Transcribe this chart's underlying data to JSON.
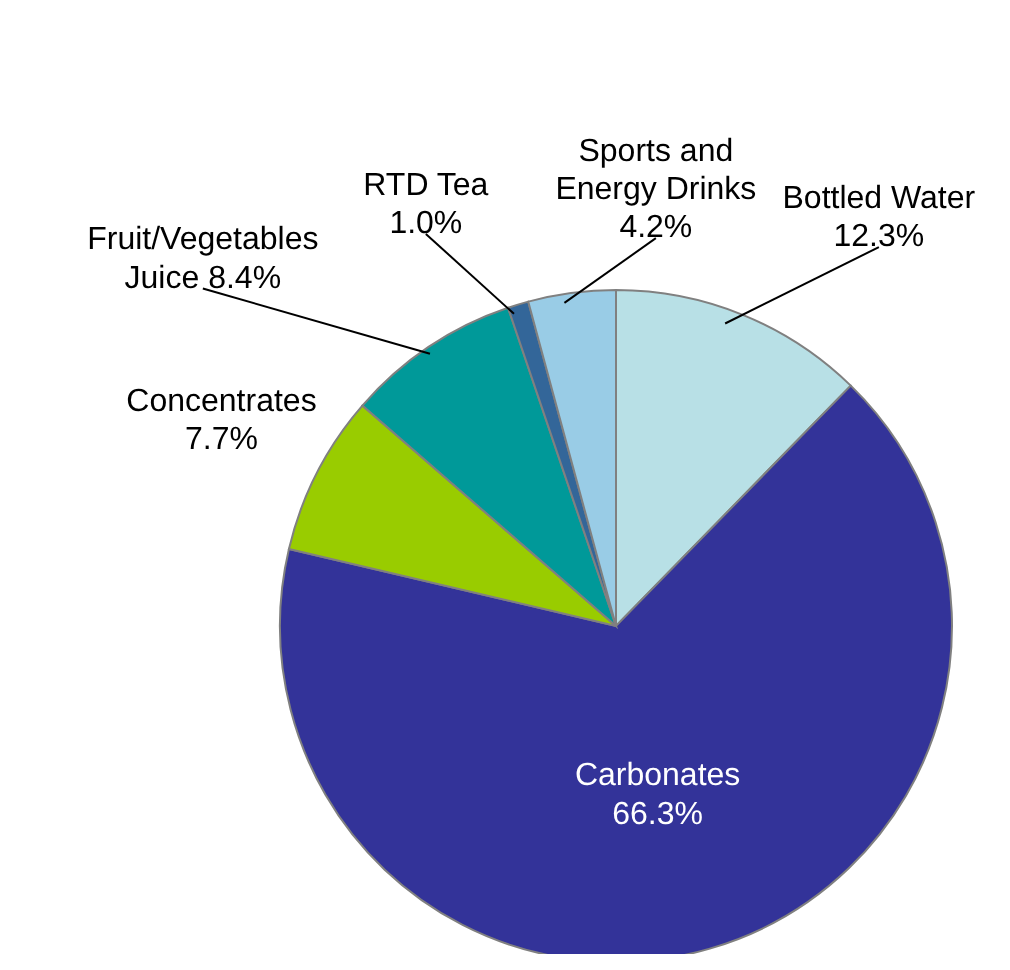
{
  "chart_data": {
    "type": "pie",
    "categories": [
      "Bottled Water",
      "Carbonates",
      "Concentrates",
      "Fruit/Vegetables Juice",
      "RTD Tea",
      "Sports and Energy Drinks"
    ],
    "values": [
      12.3,
      66.3,
      7.7,
      8.4,
      1.0,
      4.2
    ],
    "value_labels": [
      "12.3%",
      "66.3%",
      "7.7%",
      "8.4%",
      "1.0%",
      "4.2%"
    ],
    "colors": [
      "#b8e0e6",
      "#333399",
      "#99cc00",
      "#009999",
      "#336699",
      "#99cce6"
    ],
    "legend": false
  }
}
